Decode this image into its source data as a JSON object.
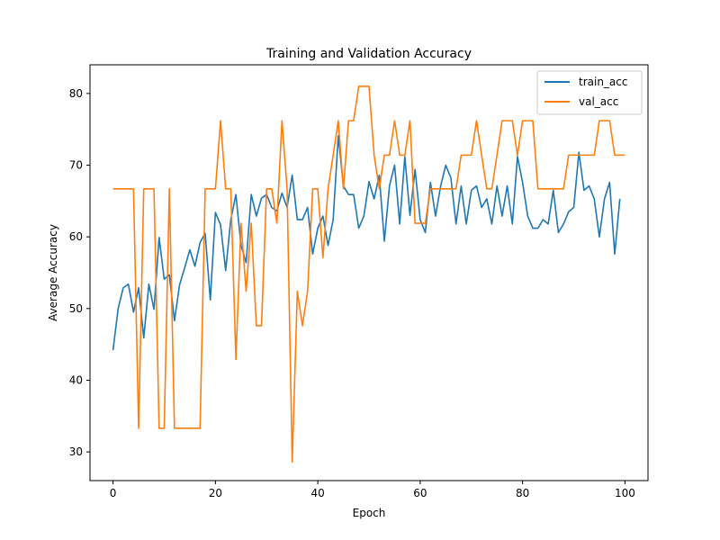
{
  "chart_data": {
    "type": "line",
    "title": "Training and Validation Accuracy",
    "xlabel": "Epoch",
    "ylabel": "Average Accuracy",
    "xlim": [
      -4.5,
      104.5
    ],
    "ylim": [
      26,
      84
    ],
    "xticks": [
      0,
      20,
      40,
      60,
      80,
      100
    ],
    "yticks": [
      30,
      40,
      50,
      60,
      70,
      80
    ],
    "grid": false,
    "legend_position": "top-right",
    "series": [
      {
        "name": "train_acc",
        "color": "#1f77b4",
        "values": [
          44.2,
          50.0,
          52.9,
          53.4,
          49.5,
          52.9,
          45.9,
          53.4,
          49.9,
          59.9,
          54.1,
          54.7,
          48.3,
          53.3,
          55.7,
          58.2,
          55.9,
          59.2,
          60.5,
          51.2,
          63.4,
          61.7,
          55.3,
          62.4,
          65.9,
          58.8,
          56.4,
          65.9,
          62.9,
          65.4,
          65.9,
          64.1,
          63.6,
          66.1,
          64.1,
          68.6,
          62.4,
          62.4,
          64.1,
          57.6,
          61.2,
          62.9,
          58.8,
          62.4,
          74.1,
          67.1,
          65.9,
          65.9,
          61.2,
          62.9,
          67.7,
          65.3,
          68.6,
          59.4,
          67.1,
          70.0,
          61.8,
          71.2,
          63.0,
          69.4,
          62.4,
          60.6,
          67.6,
          62.9,
          67.1,
          70.0,
          68.2,
          61.8,
          67.1,
          61.8,
          66.5,
          67.1,
          64.1,
          65.3,
          61.8,
          67.1,
          62.9,
          67.1,
          61.8,
          71.2,
          67.6,
          62.9,
          61.2,
          61.2,
          62.4,
          61.8,
          66.5,
          60.6,
          61.8,
          63.5,
          64.1,
          71.8,
          66.5,
          67.1,
          65.3,
          60.0,
          65.3,
          67.6,
          57.6,
          65.3
        ]
      },
      {
        "name": "val_acc",
        "color": "#ff7f0e",
        "values": [
          66.7,
          66.7,
          66.7,
          66.7,
          66.7,
          33.3,
          66.7,
          66.7,
          66.7,
          33.3,
          33.3,
          66.7,
          33.3,
          33.3,
          33.3,
          33.3,
          33.3,
          33.3,
          66.7,
          66.7,
          66.7,
          76.2,
          66.7,
          66.7,
          42.9,
          61.9,
          52.4,
          61.9,
          47.6,
          47.6,
          66.7,
          66.7,
          61.9,
          76.2,
          66.7,
          28.6,
          52.4,
          47.6,
          52.4,
          66.7,
          66.7,
          57.1,
          66.7,
          71.4,
          76.2,
          66.7,
          76.2,
          76.2,
          81.0,
          81.0,
          81.0,
          71.4,
          66.7,
          71.4,
          71.4,
          76.2,
          71.4,
          71.4,
          76.2,
          61.9,
          61.9,
          61.9,
          66.7,
          66.7,
          66.7,
          66.7,
          66.7,
          66.7,
          71.4,
          71.4,
          71.4,
          76.2,
          71.4,
          66.7,
          66.7,
          71.4,
          76.2,
          76.2,
          76.2,
          71.4,
          76.2,
          76.2,
          76.2,
          66.7,
          66.7,
          66.7,
          66.7,
          66.7,
          66.7,
          71.4,
          71.4,
          71.4,
          71.4,
          71.4,
          71.4,
          76.2,
          76.2,
          76.2,
          71.4,
          71.4,
          71.4
        ]
      }
    ]
  }
}
